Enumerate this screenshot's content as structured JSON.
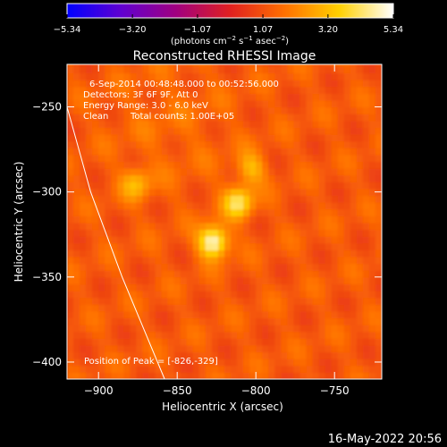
{
  "chart_data": {
    "type": "heatmap",
    "title": "Reconstructed RHESSI Image",
    "xlabel": "Heliocentric X (arcsec)",
    "ylabel": "Heliocentric Y (arcsec)",
    "xlim": [
      -920,
      -720
    ],
    "ylim": [
      -410,
      -225
    ],
    "xticks": [
      {
        "value": -900,
        "label": "−900"
      },
      {
        "value": -850,
        "label": "−850"
      },
      {
        "value": -800,
        "label": "−800"
      },
      {
        "value": -750,
        "label": "−750"
      }
    ],
    "yticks": [
      {
        "value": -250,
        "label": "−250"
      },
      {
        "value": -300,
        "label": "−300"
      },
      {
        "value": -350,
        "label": "−350"
      },
      {
        "value": -400,
        "label": "−400"
      }
    ],
    "colorbar": {
      "label_prefix": "(photons cm",
      "label_exp1": "−2",
      "label_mid1": " s",
      "label_exp2": "−1",
      "label_mid2": " asec",
      "label_exp3": "−2",
      "label_suffix": ")",
      "min": -5.34,
      "max": 5.34,
      "ticks": [
        {
          "value": -5.34,
          "label": "−5.34"
        },
        {
          "value": -3.2,
          "label": "−3.20"
        },
        {
          "value": -1.07,
          "label": "−1.07"
        },
        {
          "value": 1.07,
          "label": "1.07"
        },
        {
          "value": 3.2,
          "label": "3.20"
        },
        {
          "value": 5.34,
          "label": "5.34"
        }
      ],
      "colors": [
        "#0000ff",
        "#6000d0",
        "#a00080",
        "#e02020",
        "#ff7000",
        "#ffd000",
        "#ffffff"
      ]
    },
    "sources": [
      {
        "x": -827,
        "y": -329,
        "peak": 5.34
      },
      {
        "x": -811,
        "y": -306,
        "peak": 4.2
      },
      {
        "x": -803,
        "y": -286,
        "peak": 3.1
      },
      {
        "x": -876,
        "y": -295,
        "peak": 3.0
      }
    ],
    "limb": [
      {
        "x": -920,
        "y": -250
      },
      {
        "x": -905,
        "y": -300
      },
      {
        "x": -885,
        "y": -350
      },
      {
        "x": -858,
        "y": -410
      }
    ],
    "annotations": {
      "time_range": "6-Sep-2014 00:48:48.000 to 00:52:56.000",
      "detectors": "Detectors: 3F 6F 9F, Att 0",
      "energy_range": "Energy Range: 3.0 - 6.0 keV",
      "method": "Clean",
      "total_counts": "Total counts: 1.00E+05",
      "peak_position": "Position of Peak = [-826,-329]"
    },
    "footer_date": "16-May-2022 20:56"
  }
}
